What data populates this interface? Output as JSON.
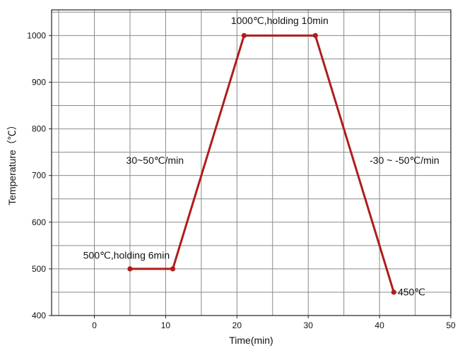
{
  "chart_data": {
    "type": "line",
    "xlabel": "Time(min)",
    "ylabel": "Temperature（℃）",
    "xlim": [
      -6,
      50
    ],
    "ylim": [
      400,
      1055
    ],
    "xticks": [
      0,
      10,
      20,
      30,
      40,
      50
    ],
    "yticks": [
      400,
      500,
      600,
      700,
      800,
      900,
      1000
    ],
    "grid": true,
    "series": [
      {
        "color": "#b01c1c",
        "points": [
          {
            "x": 5,
            "y": 500
          },
          {
            "x": 11,
            "y": 500
          },
          {
            "x": 21,
            "y": 1000
          },
          {
            "x": 31,
            "y": 1000
          },
          {
            "x": 42,
            "y": 450
          }
        ]
      }
    ],
    "annotations": [
      {
        "text": "1000℃,holding 10min",
        "x": 26,
        "y": 1025
      },
      {
        "text": "30~50℃/min",
        "x": 8.5,
        "y": 725
      },
      {
        "text": "-30 ~ -50℃/min",
        "x": 43.5,
        "y": 725
      },
      {
        "text": "500℃,holding 6min",
        "x": 4.5,
        "y": 522
      },
      {
        "text": "450℃",
        "x": 44.5,
        "y": 443
      }
    ]
  }
}
